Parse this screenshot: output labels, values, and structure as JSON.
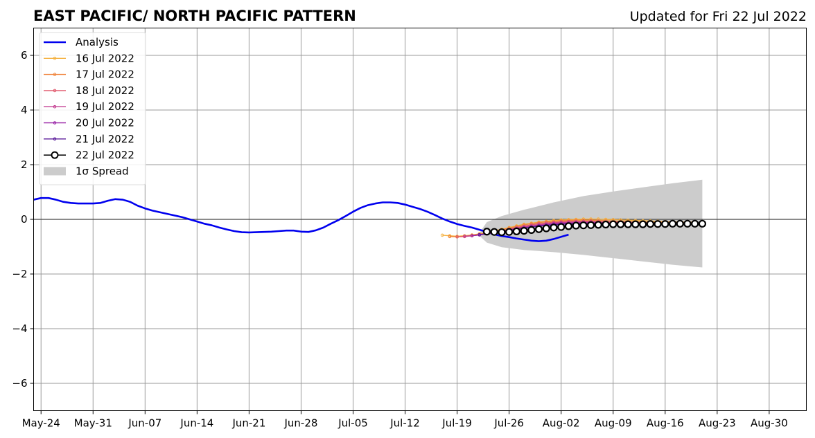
{
  "chart_data": {
    "type": "line",
    "title": "EAST PACIFIC/ NORTH PACIFIC PATTERN",
    "subtitle": "Updated for Fri 22 Jul 2022",
    "xlabel": "",
    "ylabel": "",
    "x_start": "2022-05-23",
    "xlim": [
      "2022-05-23",
      "2022-09-04"
    ],
    "ylim": [
      -7,
      7
    ],
    "x_ticks": [
      {
        "date": "2022-05-24",
        "label": "May-24"
      },
      {
        "date": "2022-05-31",
        "label": "May-31"
      },
      {
        "date": "2022-06-07",
        "label": "Jun-07"
      },
      {
        "date": "2022-06-14",
        "label": "Jun-14"
      },
      {
        "date": "2022-06-21",
        "label": "Jun-21"
      },
      {
        "date": "2022-06-28",
        "label": "Jun-28"
      },
      {
        "date": "2022-07-05",
        "label": "Jul-05"
      },
      {
        "date": "2022-07-12",
        "label": "Jul-12"
      },
      {
        "date": "2022-07-19",
        "label": "Jul-19"
      },
      {
        "date": "2022-07-26",
        "label": "Jul-26"
      },
      {
        "date": "2022-08-02",
        "label": "Aug-02"
      },
      {
        "date": "2022-08-09",
        "label": "Aug-09"
      },
      {
        "date": "2022-08-16",
        "label": "Aug-16"
      },
      {
        "date": "2022-08-23",
        "label": "Aug-23"
      },
      {
        "date": "2022-08-30",
        "label": "Aug-30"
      }
    ],
    "y_ticks": [
      {
        "value": 6,
        "label": "6"
      },
      {
        "value": 4,
        "label": "4"
      },
      {
        "value": 2,
        "label": "2"
      },
      {
        "value": 0,
        "label": "0"
      },
      {
        "value": -2,
        "label": "−2"
      },
      {
        "value": -4,
        "label": "−4"
      },
      {
        "value": -6,
        "label": "−6"
      }
    ],
    "grid": true,
    "legend_position": "top-left",
    "zero_line": true,
    "colors": {
      "analysis": "#0000ee",
      "spread": "#cccccc",
      "grid": "#999999"
    },
    "analysis": {
      "name": "Analysis",
      "start_date": "2022-05-23",
      "values": [
        0.72,
        0.78,
        0.78,
        0.72,
        0.64,
        0.6,
        0.58,
        0.58,
        0.58,
        0.6,
        0.68,
        0.74,
        0.72,
        0.64,
        0.5,
        0.4,
        0.32,
        0.26,
        0.2,
        0.14,
        0.08,
        0.0,
        -0.08,
        -0.16,
        -0.22,
        -0.3,
        -0.37,
        -0.43,
        -0.47,
        -0.48,
        -0.47,
        -0.46,
        -0.45,
        -0.43,
        -0.41,
        -0.41,
        -0.45,
        -0.46,
        -0.4,
        -0.3,
        -0.16,
        -0.03,
        0.12,
        0.28,
        0.42,
        0.52,
        0.58,
        0.62,
        0.62,
        0.6,
        0.54,
        0.46,
        0.38,
        0.28,
        0.16,
        0.03,
        -0.08,
        -0.17,
        -0.24,
        -0.3,
        -0.38,
        -0.46,
        -0.55,
        -0.61,
        -0.65,
        -0.7,
        -0.74,
        -0.78,
        -0.8,
        -0.78,
        -0.72,
        -0.64,
        -0.56
      ]
    },
    "forecasts": [
      {
        "name": "16 Jul 2022",
        "color": "#f5b13e",
        "start_date": "2022-07-17",
        "values": [
          -0.58,
          -0.6,
          -0.62,
          -0.6,
          -0.57,
          -0.53,
          -0.48,
          -0.42,
          -0.36,
          -0.3,
          -0.24,
          -0.18,
          -0.14,
          -0.1,
          -0.07,
          -0.04,
          -0.02,
          -0.01,
          0.0,
          0.01,
          0.01,
          0.01,
          0.0,
          -0.01,
          -0.02,
          -0.03,
          -0.04,
          -0.05,
          -0.06,
          -0.07,
          -0.08,
          -0.09,
          -0.1,
          -0.1,
          -0.1
        ]
      },
      {
        "name": "17 Jul 2022",
        "color": "#f0843c",
        "start_date": "2022-07-18",
        "values": [
          -0.63,
          -0.64,
          -0.62,
          -0.58,
          -0.54,
          -0.5,
          -0.44,
          -0.38,
          -0.32,
          -0.26,
          -0.2,
          -0.16,
          -0.12,
          -0.09,
          -0.07,
          -0.05,
          -0.04,
          -0.03,
          -0.03,
          -0.03,
          -0.04,
          -0.05,
          -0.06,
          -0.07,
          -0.08,
          -0.09,
          -0.1,
          -0.1,
          -0.11,
          -0.11,
          -0.12,
          -0.12,
          -0.12,
          -0.12
        ]
      },
      {
        "name": "18 Jul 2022",
        "color": "#e0566a",
        "start_date": "2022-07-19",
        "values": [
          -0.64,
          -0.63,
          -0.6,
          -0.56,
          -0.52,
          -0.47,
          -0.42,
          -0.36,
          -0.3,
          -0.25,
          -0.2,
          -0.16,
          -0.13,
          -0.11,
          -0.09,
          -0.08,
          -0.07,
          -0.07,
          -0.07,
          -0.08,
          -0.09,
          -0.1,
          -0.1,
          -0.11,
          -0.12,
          -0.12,
          -0.13,
          -0.13,
          -0.13,
          -0.13,
          -0.14,
          -0.14,
          -0.14
        ]
      },
      {
        "name": "19 Jul 2022",
        "color": "#c33c90",
        "start_date": "2022-07-20",
        "values": [
          -0.62,
          -0.6,
          -0.57,
          -0.53,
          -0.49,
          -0.44,
          -0.38,
          -0.33,
          -0.28,
          -0.24,
          -0.2,
          -0.17,
          -0.14,
          -0.12,
          -0.11,
          -0.1,
          -0.1,
          -0.1,
          -0.11,
          -0.11,
          -0.12,
          -0.12,
          -0.13,
          -0.13,
          -0.14,
          -0.14,
          -0.14,
          -0.15,
          -0.15,
          -0.15,
          -0.15,
          -0.15
        ]
      },
      {
        "name": "20 Jul 2022",
        "color": "#9a28a8",
        "start_date": "2022-07-21",
        "values": [
          -0.6,
          -0.57,
          -0.53,
          -0.49,
          -0.45,
          -0.4,
          -0.35,
          -0.31,
          -0.27,
          -0.23,
          -0.2,
          -0.17,
          -0.15,
          -0.14,
          -0.13,
          -0.13,
          -0.13,
          -0.13,
          -0.14,
          -0.14,
          -0.15,
          -0.15,
          -0.15,
          -0.16,
          -0.16,
          -0.16,
          -0.16,
          -0.17,
          -0.17,
          -0.17,
          -0.17
        ]
      },
      {
        "name": "21 Jul 2022",
        "color": "#5a1a9a",
        "start_date": "2022-07-22",
        "values": [
          -0.56,
          -0.52,
          -0.48,
          -0.44,
          -0.4,
          -0.36,
          -0.32,
          -0.28,
          -0.25,
          -0.22,
          -0.2,
          -0.18,
          -0.17,
          -0.16,
          -0.16,
          -0.16,
          -0.16,
          -0.16,
          -0.16,
          -0.17,
          -0.17,
          -0.17,
          -0.17,
          -0.18,
          -0.18,
          -0.18,
          -0.18,
          -0.18,
          -0.18,
          -0.18
        ]
      },
      {
        "name": "22 Jul 2022",
        "color": "#000000",
        "marker": "open-circle",
        "start_date": "2022-07-23",
        "values": [
          -0.45,
          -0.46,
          -0.47,
          -0.46,
          -0.44,
          -0.42,
          -0.39,
          -0.36,
          -0.33,
          -0.3,
          -0.28,
          -0.25,
          -0.23,
          -0.22,
          -0.21,
          -0.2,
          -0.19,
          -0.18,
          -0.18,
          -0.18,
          -0.18,
          -0.18,
          -0.17,
          -0.17,
          -0.17,
          -0.16,
          -0.16,
          -0.16,
          -0.16,
          -0.16
        ]
      }
    ],
    "spread": {
      "name": "1σ Spread",
      "color": "#cccccc",
      "dates": [
        "2022-07-22",
        "2022-07-23",
        "2022-07-25",
        "2022-07-28",
        "2022-08-01",
        "2022-08-05",
        "2022-08-09",
        "2022-08-13",
        "2022-08-17",
        "2022-08-21"
      ],
      "upper": [
        -0.5,
        -0.1,
        0.12,
        0.35,
        0.62,
        0.85,
        1.02,
        1.17,
        1.32,
        1.45
      ],
      "lower": [
        -0.6,
        -0.85,
        -1.02,
        -1.12,
        -1.2,
        -1.3,
        -1.42,
        -1.54,
        -1.66,
        -1.76
      ]
    }
  }
}
